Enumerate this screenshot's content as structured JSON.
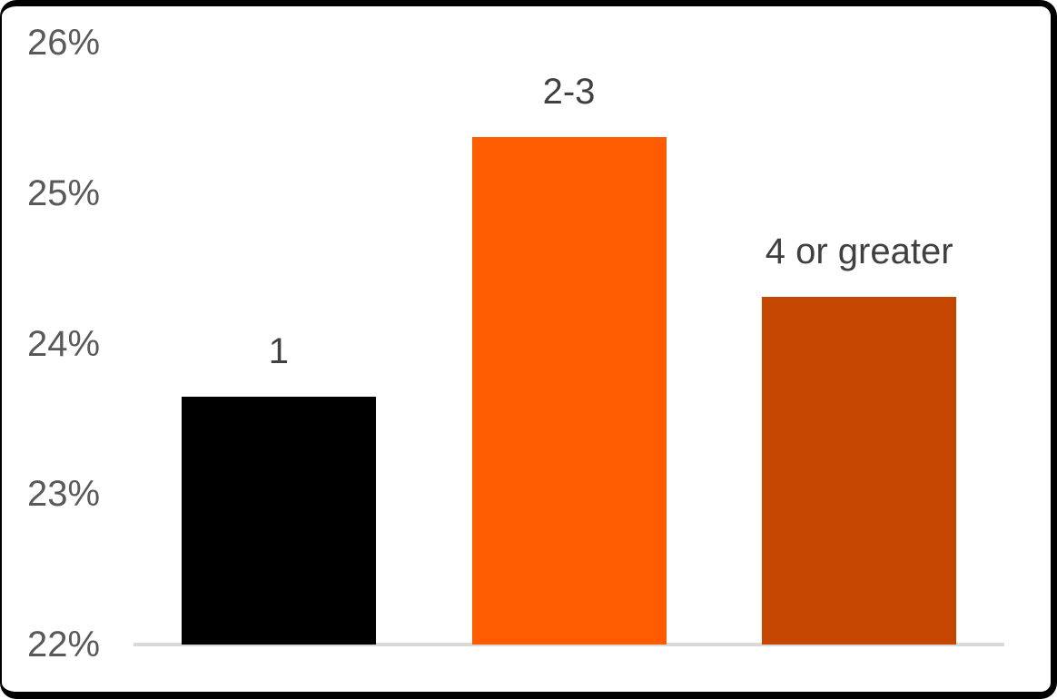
{
  "chart_data": {
    "type": "bar",
    "title": "",
    "xlabel": "",
    "ylabel": "",
    "categories": [
      "1",
      "2-3",
      "4 or greater"
    ],
    "values": [
      23.65,
      25.37,
      24.31
    ],
    "bar_colors": [
      "#000000",
      "#FF5B00",
      "#C44601"
    ],
    "ylim": [
      22,
      26
    ],
    "yticks": [
      {
        "value": 26,
        "label": "26%"
      },
      {
        "value": 25,
        "label": "25%"
      },
      {
        "value": 24,
        "label": "24%"
      },
      {
        "value": 23,
        "label": "23%"
      },
      {
        "value": 22,
        "label": "22%"
      }
    ],
    "grid": false,
    "legend": false,
    "value_labels_shown": false,
    "category_labels_position": "above-bars",
    "axis_tick_color": "#595959",
    "category_label_color": "#404040",
    "baseline_color": "#D9D9D9",
    "background_color": "#FFFFFF",
    "frame_color": "#000000"
  }
}
